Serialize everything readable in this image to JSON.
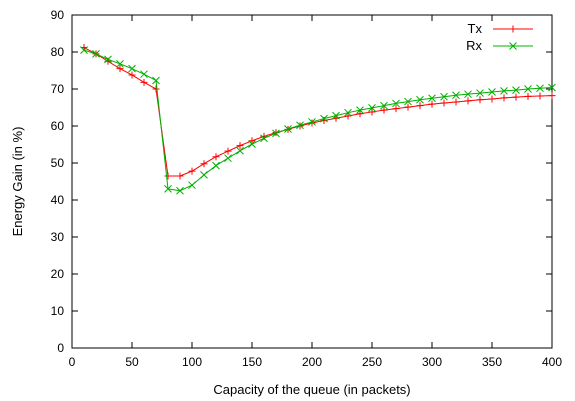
{
  "chart_data": {
    "type": "line",
    "title": "",
    "xlabel": "Capacity of the queue (in packets)",
    "ylabel": "Energy Gain (in %)",
    "xlim": [
      0,
      400
    ],
    "ylim": [
      0,
      90
    ],
    "xticks": [
      0,
      50,
      100,
      150,
      200,
      250,
      300,
      350,
      400
    ],
    "yticks": [
      0,
      10,
      20,
      30,
      40,
      50,
      60,
      70,
      80,
      90
    ],
    "grid": false,
    "legend_position": "top-right",
    "series": [
      {
        "name": "Tx",
        "color": "#ff0000",
        "marker": "plus",
        "x": [
          10,
          20,
          30,
          40,
          50,
          60,
          70,
          80,
          90,
          100,
          110,
          120,
          130,
          140,
          150,
          160,
          170,
          180,
          190,
          200,
          210,
          220,
          230,
          240,
          250,
          260,
          270,
          280,
          290,
          300,
          310,
          320,
          330,
          340,
          350,
          360,
          370,
          380,
          390,
          400
        ],
        "y": [
          81.2,
          79.5,
          77.5,
          75.5,
          73.8,
          71.8,
          70.0,
          46.5,
          46.5,
          47.8,
          49.8,
          51.7,
          53.2,
          54.7,
          56.0,
          57.2,
          58.2,
          59.1,
          60.0,
          60.8,
          61.5,
          62.1,
          62.7,
          63.3,
          63.8,
          64.3,
          64.7,
          65.1,
          65.5,
          65.9,
          66.2,
          66.5,
          66.8,
          67.1,
          67.3,
          67.6,
          67.8,
          68.0,
          68.1,
          68.2
        ]
      },
      {
        "name": "Rx",
        "color": "#00b000",
        "marker": "cross",
        "x": [
          10,
          20,
          30,
          40,
          50,
          60,
          70,
          80,
          90,
          100,
          110,
          120,
          130,
          140,
          150,
          160,
          170,
          180,
          190,
          200,
          210,
          220,
          230,
          240,
          250,
          260,
          270,
          280,
          290,
          300,
          310,
          320,
          330,
          340,
          350,
          360,
          370,
          380,
          390,
          400
        ],
        "y": [
          80.5,
          79.5,
          78.0,
          76.8,
          75.5,
          74.0,
          72.3,
          43.0,
          42.5,
          44.0,
          46.8,
          49.3,
          51.3,
          53.3,
          55.1,
          56.7,
          58.0,
          59.2,
          60.2,
          61.1,
          62.0,
          62.8,
          63.6,
          64.3,
          64.9,
          65.5,
          66.1,
          66.6,
          67.1,
          67.5,
          67.9,
          68.3,
          68.6,
          68.9,
          69.2,
          69.5,
          69.7,
          70.0,
          70.2,
          70.4
        ]
      }
    ]
  }
}
